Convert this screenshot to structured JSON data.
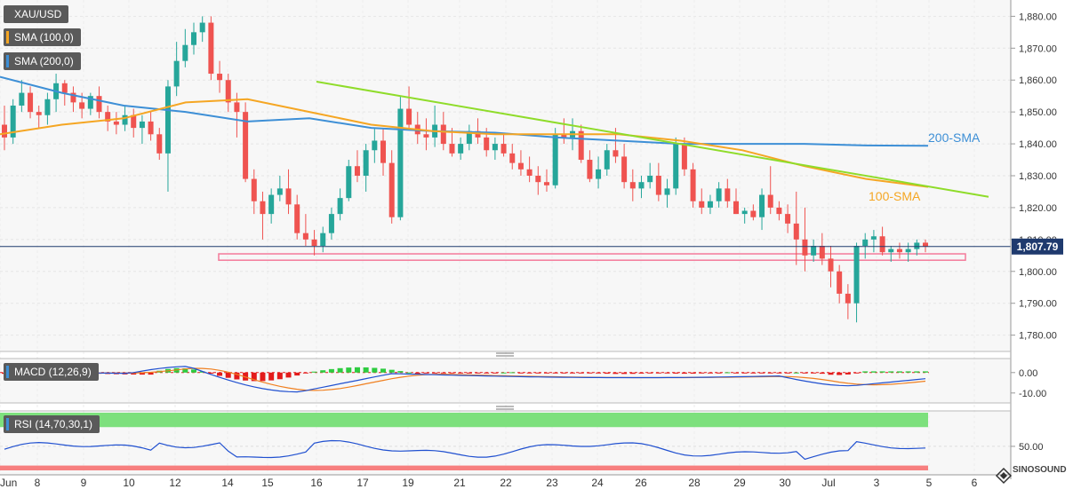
{
  "legend": {
    "symbol": "XAU/USD",
    "sma100": "SMA (100,0)",
    "sma200": "SMA (200,0)",
    "macd": "MACD (12,26,9)",
    "rsi": "RSI (14,70,30,1)"
  },
  "colors": {
    "up": "#26a69a",
    "down": "#ef5350",
    "sma100": "#f5a623",
    "sma200": "#3d8fd6",
    "trendline": "#8fdc2a",
    "rsi_overbought": "#7de07d",
    "rsi_oversold": "#f77f7f",
    "macd_pos": "#2ecc40",
    "macd_neg": "#e31b1b"
  },
  "annotations": {
    "sma200_label": "200-SMA",
    "sma100_label": "100-SMA",
    "last_price": "1,807.79"
  },
  "watermark": "SINOSOUND",
  "chart_data": [
    {
      "type": "candlestick",
      "x_labels": [
        "Jun",
        "8",
        "9",
        "10",
        "12",
        "14",
        "15",
        "16",
        "17",
        "19",
        "21",
        "22",
        "23",
        "24",
        "26",
        "28",
        "29",
        "30",
        "Jul",
        "3",
        "5",
        "6"
      ],
      "y_ticks": [
        "1,780.00",
        "1,790.00",
        "1,800.00",
        "1,810.00",
        "1,820.00",
        "1,830.00",
        "1,840.00",
        "1,850.00",
        "1,860.00",
        "1,870.00",
        "1,880.00"
      ],
      "ylim": [
        1776,
        1884
      ],
      "last_price": 1807.79,
      "support_zone": [
        1803.5,
        1805.5
      ],
      "sma200": [
        1861,
        1856,
        1852,
        1850,
        1847,
        1848,
        1845,
        1844,
        1843.5,
        1842,
        1841,
        1840,
        1840,
        1840,
        1839.5,
        1839.4
      ],
      "sma100": [
        1843,
        1846,
        1848,
        1853,
        1854,
        1850,
        1846,
        1844,
        1843,
        1843,
        1843,
        1841,
        1838,
        1833,
        1829,
        1826.5
      ],
      "trendline": [
        [
          1859.5
        ],
        [
          1823.4
        ]
      ],
      "candles": [
        [
          1846,
          1852,
          1838,
          1842
        ],
        [
          1842,
          1854,
          1840,
          1852
        ],
        [
          1852,
          1860,
          1850,
          1856
        ],
        [
          1856,
          1858,
          1848,
          1850
        ],
        [
          1850,
          1852,
          1845,
          1849
        ],
        [
          1849,
          1856,
          1846,
          1854
        ],
        [
          1854,
          1862,
          1850,
          1859
        ],
        [
          1859,
          1860,
          1852,
          1856
        ],
        [
          1856,
          1858,
          1850,
          1853
        ],
        [
          1853,
          1856,
          1848,
          1851
        ],
        [
          1851,
          1856,
          1849,
          1855
        ],
        [
          1855,
          1858,
          1848,
          1850
        ],
        [
          1850,
          1852,
          1844,
          1847
        ],
        [
          1847,
          1850,
          1843,
          1846
        ],
        [
          1846,
          1852,
          1844,
          1849
        ],
        [
          1849,
          1851,
          1842,
          1845
        ],
        [
          1845,
          1849,
          1840,
          1847
        ],
        [
          1847,
          1850,
          1841,
          1843
        ],
        [
          1843,
          1845,
          1835,
          1837
        ],
        [
          1837,
          1860,
          1825,
          1858
        ],
        [
          1858,
          1872,
          1855,
          1866
        ],
        [
          1866,
          1876,
          1864,
          1871
        ],
        [
          1871,
          1878,
          1868,
          1875
        ],
        [
          1875,
          1880,
          1872,
          1878
        ],
        [
          1878,
          1880,
          1860,
          1862
        ],
        [
          1862,
          1866,
          1856,
          1860
        ],
        [
          1860,
          1862,
          1850,
          1853
        ],
        [
          1853,
          1856,
          1842,
          1850
        ],
        [
          1850,
          1853,
          1828,
          1829
        ],
        [
          1829,
          1832,
          1818,
          1822
        ],
        [
          1822,
          1825,
          1810,
          1818
        ],
        [
          1818,
          1826,
          1815,
          1824
        ],
        [
          1824,
          1830,
          1822,
          1826
        ],
        [
          1826,
          1832,
          1818,
          1821
        ],
        [
          1821,
          1824,
          1810,
          1812
        ],
        [
          1812,
          1818,
          1808,
          1810
        ],
        [
          1810,
          1813,
          1805,
          1808
        ],
        [
          1808,
          1814,
          1806,
          1812
        ],
        [
          1812,
          1820,
          1810,
          1818
        ],
        [
          1818,
          1826,
          1816,
          1823
        ],
        [
          1823,
          1835,
          1822,
          1833
        ],
        [
          1833,
          1838,
          1828,
          1830
        ],
        [
          1830,
          1840,
          1825,
          1838
        ],
        [
          1838,
          1845,
          1834,
          1841
        ],
        [
          1841,
          1845,
          1830,
          1834
        ],
        [
          1834,
          1838,
          1815,
          1817
        ],
        [
          1817,
          1855,
          1816,
          1851
        ],
        [
          1851,
          1858,
          1845,
          1846
        ],
        [
          1846,
          1850,
          1840,
          1843
        ],
        [
          1843,
          1848,
          1838,
          1842
        ],
        [
          1842,
          1852,
          1839,
          1846
        ],
        [
          1846,
          1850,
          1838,
          1840
        ],
        [
          1840,
          1845,
          1836,
          1837
        ],
        [
          1837,
          1842,
          1835,
          1840
        ],
        [
          1840,
          1846,
          1838,
          1844
        ],
        [
          1844,
          1848,
          1840,
          1842
        ],
        [
          1842,
          1845,
          1836,
          1838
        ],
        [
          1838,
          1842,
          1835,
          1840
        ],
        [
          1840,
          1843,
          1836,
          1837
        ],
        [
          1837,
          1840,
          1832,
          1834
        ],
        [
          1834,
          1838,
          1830,
          1832
        ],
        [
          1832,
          1836,
          1828,
          1830
        ],
        [
          1830,
          1833,
          1824,
          1828
        ],
        [
          1828,
          1832,
          1825,
          1827
        ],
        [
          1827,
          1845,
          1826,
          1843
        ],
        [
          1843,
          1848,
          1840,
          1842
        ],
        [
          1842,
          1848,
          1838,
          1844
        ],
        [
          1844,
          1846,
          1834,
          1835
        ],
        [
          1835,
          1838,
          1828,
          1829
        ],
        [
          1829,
          1836,
          1826,
          1832
        ],
        [
          1832,
          1840,
          1830,
          1838
        ],
        [
          1838,
          1845,
          1834,
          1836
        ],
        [
          1836,
          1840,
          1826,
          1828
        ],
        [
          1828,
          1832,
          1822,
          1826
        ],
        [
          1826,
          1830,
          1823,
          1828
        ],
        [
          1828,
          1834,
          1826,
          1830
        ],
        [
          1830,
          1834,
          1822,
          1824
        ],
        [
          1824,
          1829,
          1820,
          1826
        ],
        [
          1826,
          1842,
          1824,
          1840
        ],
        [
          1840,
          1842,
          1830,
          1832
        ],
        [
          1832,
          1834,
          1820,
          1822
        ],
        [
          1822,
          1826,
          1818,
          1820
        ],
        [
          1820,
          1824,
          1818,
          1822
        ],
        [
          1822,
          1828,
          1820,
          1826
        ],
        [
          1826,
          1829,
          1820,
          1822
        ],
        [
          1822,
          1826,
          1818,
          1818
        ],
        [
          1818,
          1820,
          1815,
          1819
        ],
        [
          1819,
          1821,
          1816,
          1817
        ],
        [
          1817,
          1826,
          1813,
          1824
        ],
        [
          1824,
          1833,
          1818,
          1820
        ],
        [
          1820,
          1822,
          1816,
          1818
        ],
        [
          1818,
          1821,
          1812,
          1815
        ],
        [
          1815,
          1825,
          1802,
          1810
        ],
        [
          1810,
          1820,
          1800,
          1805
        ],
        [
          1805,
          1810,
          1803,
          1808
        ],
        [
          1808,
          1812,
          1802,
          1804
        ],
        [
          1804,
          1808,
          1795,
          1800
        ],
        [
          1800,
          1802,
          1790,
          1793
        ],
        [
          1793,
          1796,
          1785,
          1790
        ],
        [
          1790,
          1809,
          1784,
          1808
        ],
        [
          1808,
          1812,
          1804,
          1810
        ],
        [
          1810,
          1813,
          1806,
          1811
        ],
        [
          1811,
          1814,
          1805,
          1806
        ],
        [
          1806,
          1808,
          1803,
          1807
        ],
        [
          1807,
          1809,
          1804,
          1806
        ],
        [
          1806,
          1809,
          1803,
          1807
        ],
        [
          1807,
          1810,
          1805,
          1809
        ],
        [
          1809,
          1810,
          1806,
          1807.79
        ]
      ]
    },
    {
      "type": "bar",
      "name": "MACD (12,26,9)",
      "y_ticks": [
        "0.00",
        "-10.00"
      ],
      "ylim": [
        -14,
        6
      ]
    },
    {
      "type": "line",
      "name": "RSI (14,70,30,1)",
      "y_ticks": [
        "50.00"
      ],
      "ylim": [
        25,
        85
      ],
      "overbought": 70,
      "oversold": 30
    }
  ]
}
